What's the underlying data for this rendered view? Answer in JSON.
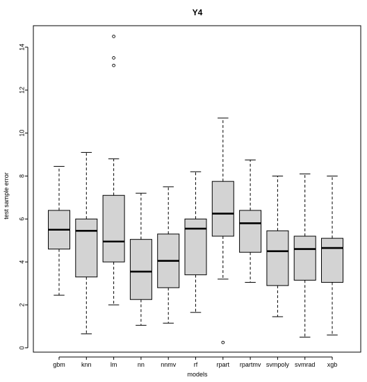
{
  "chart_data": {
    "type": "box",
    "title": "Y4",
    "xlabel": "models",
    "ylabel": "test sample error",
    "ylim": [
      -0.2,
      15.0
    ],
    "yticks": [
      0,
      2,
      4,
      6,
      8,
      10,
      12,
      14
    ],
    "grid": false,
    "box_fill": "#d3d3d3",
    "line_color": "#000000",
    "categories": [
      "gbm",
      "knn",
      "lm",
      "nn",
      "nnmv",
      "rf",
      "rpart",
      "rpartmv",
      "svmpoly",
      "svmrad",
      "xgb"
    ],
    "series": [
      {
        "whisker_low": 2.45,
        "q1": 4.6,
        "median": 5.5,
        "q3": 6.4,
        "whisker_high": 8.45,
        "outliers": []
      },
      {
        "whisker_low": 0.65,
        "q1": 3.3,
        "median": 5.45,
        "q3": 6.0,
        "whisker_high": 9.1,
        "outliers": []
      },
      {
        "whisker_low": 2.0,
        "q1": 4.0,
        "median": 4.95,
        "q3": 7.1,
        "whisker_high": 8.8,
        "outliers": [
          13.15,
          13.5,
          14.5
        ]
      },
      {
        "whisker_low": 1.05,
        "q1": 2.25,
        "median": 3.55,
        "q3": 5.05,
        "whisker_high": 7.2,
        "outliers": []
      },
      {
        "whisker_low": 1.15,
        "q1": 2.8,
        "median": 4.05,
        "q3": 5.3,
        "whisker_high": 7.5,
        "outliers": []
      },
      {
        "whisker_low": 1.65,
        "q1": 3.4,
        "median": 5.55,
        "q3": 6.0,
        "whisker_high": 8.2,
        "outliers": []
      },
      {
        "whisker_low": 3.2,
        "q1": 5.2,
        "median": 6.25,
        "q3": 7.75,
        "whisker_high": 10.7,
        "outliers": [
          0.25
        ]
      },
      {
        "whisker_low": 3.05,
        "q1": 4.45,
        "median": 5.8,
        "q3": 6.4,
        "whisker_high": 8.75,
        "outliers": []
      },
      {
        "whisker_low": 1.45,
        "q1": 2.9,
        "median": 4.5,
        "q3": 5.45,
        "whisker_high": 8.0,
        "outliers": []
      },
      {
        "whisker_low": 0.5,
        "q1": 3.15,
        "median": 4.6,
        "q3": 5.2,
        "whisker_high": 8.1,
        "outliers": []
      },
      {
        "whisker_low": 0.6,
        "q1": 3.05,
        "median": 4.65,
        "q3": 5.1,
        "whisker_high": 8.0,
        "outliers": []
      }
    ]
  }
}
